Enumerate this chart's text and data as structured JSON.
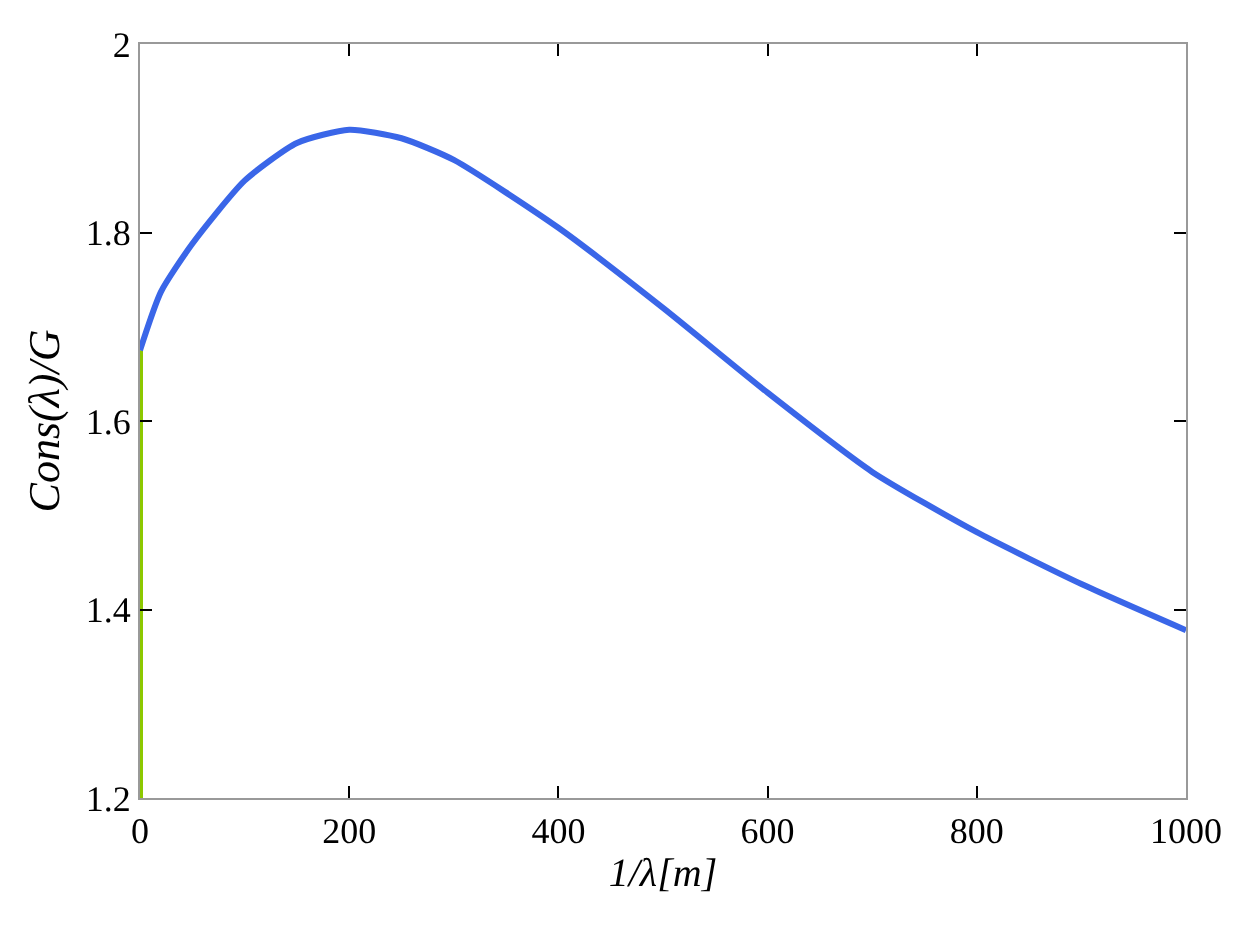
{
  "chart_data": {
    "type": "line",
    "xlabel": "1/λ[m]",
    "ylabel": "Cons(λ)/G",
    "xlim": [
      0,
      1000
    ],
    "xticks": [
      0,
      200,
      400,
      600,
      800,
      1000
    ],
    "ylim": [
      1.2,
      2
    ],
    "yticks": [
      1.2,
      1.4,
      1.6,
      1.8,
      2
    ],
    "series": [
      {
        "color": "#8cc800",
        "x": [
          0,
          0
        ],
        "values": [
          1.2,
          1.675
        ]
      },
      {
        "color": "#3a66e8",
        "x": [
          0,
          20,
          50,
          100,
          150,
          200,
          250,
          300,
          400,
          500,
          600,
          700,
          800,
          900,
          1000
        ],
        "values": [
          1.675,
          1.737,
          1.788,
          1.855,
          1.895,
          1.909,
          1.9,
          1.877,
          1.805,
          1.72,
          1.63,
          1.546,
          1.482,
          1.427,
          1.378
        ]
      }
    ]
  }
}
